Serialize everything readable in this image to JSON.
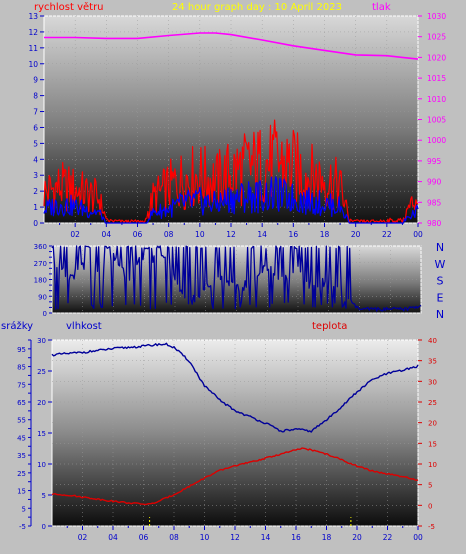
{
  "colors": {
    "background": "#c0c0c0",
    "tick_blue": "#0000cc",
    "wind_avg": "#0000ff",
    "wind_gust": "#ff0000",
    "pressure": "#ff00ff",
    "direction": "#000099",
    "humidity": "#000099",
    "temperature": "#dd0000",
    "rain": "#ffff00",
    "title": "#ffff00"
  },
  "chart_data": [
    {
      "type": "line",
      "title": "24 hour graph day : 10 April 2023",
      "ylabel_left": "rychlost větru",
      "ylabel_right": "tlak",
      "ylim_left": [
        0,
        13
      ],
      "ylim_right": [
        980,
        1030
      ],
      "yticks_left": [
        0,
        1,
        2,
        3,
        4,
        5,
        6,
        7,
        8,
        9,
        10,
        11,
        12,
        13
      ],
      "yticks_right": [
        980,
        985,
        990,
        995,
        1000,
        1005,
        1010,
        1015,
        1020,
        1025,
        1030
      ],
      "xlim": [
        0,
        24
      ],
      "xticks": [
        "02",
        "04",
        "06",
        "08",
        "10",
        "12",
        "14",
        "16",
        "18",
        "20",
        "22",
        "00"
      ],
      "series": [
        {
          "name": "tlak",
          "axis": "right",
          "x": [
            0,
            2,
            4,
            6,
            8,
            10,
            11,
            12,
            14,
            16,
            18,
            20,
            22,
            23,
            24
          ],
          "values": [
            1024.8,
            1024.8,
            1024.6,
            1024.6,
            1025.3,
            1025.9,
            1025.9,
            1025.5,
            1024.2,
            1022.8,
            1021.7,
            1020.6,
            1020.4,
            1020.0,
            1019.6
          ]
        },
        {
          "axis": "left",
          "x": [
            0,
            1,
            2,
            3,
            3.5,
            4,
            5,
            6,
            6.5,
            7,
            8,
            9,
            10,
            11,
            12,
            13,
            14,
            15,
            16,
            17,
            18,
            19,
            19.6,
            20,
            21,
            22,
            23,
            23.5,
            24
          ],
          "values": [
            2.2,
            2.6,
            2.4,
            2.0,
            1.8,
            0.3,
            0.2,
            0.2,
            0.2,
            1.8,
            2.6,
            3.2,
            3.4,
            3.0,
            3.6,
            4.0,
            4.2,
            4.4,
            4.0,
            3.4,
            3.2,
            2.6,
            0.3,
            0.2,
            0.2,
            0.3,
            0.3,
            1.2,
            2.0
          ]
        },
        {
          "axis": "left",
          "x": [
            0,
            1,
            2,
            3,
            3.5,
            4,
            5,
            6,
            6.5,
            7,
            8,
            9,
            10,
            11,
            12,
            13,
            14,
            15,
            16,
            17,
            18,
            19,
            19.6,
            20,
            21,
            22,
            23,
            23.5,
            24
          ],
          "values": [
            1.0,
            1.4,
            1.2,
            0.9,
            0.8,
            0.1,
            0.0,
            0.0,
            0.0,
            0.8,
            1.0,
            1.5,
            1.6,
            1.4,
            1.8,
            2.0,
            2.0,
            2.1,
            1.8,
            1.6,
            1.4,
            1.2,
            0.1,
            0.0,
            0.0,
            0.0,
            0.1,
            0.5,
            0.9
          ]
        }
      ]
    },
    {
      "type": "line",
      "right_labels": [
        "N",
        "W",
        "S",
        "E",
        "N"
      ],
      "ylim": [
        0,
        360
      ],
      "yticks": [
        0,
        30,
        60,
        90,
        120,
        150,
        180,
        210,
        240,
        270,
        300,
        330,
        360
      ],
      "xlim": [
        0,
        24
      ],
      "series": [
        {
          "x": [
            0,
            1,
            2,
            3,
            4,
            5,
            5.5,
            6,
            6.5,
            7,
            8,
            9,
            10,
            11,
            12,
            13,
            14,
            15,
            16,
            17,
            18,
            19,
            19.5,
            20,
            21,
            22,
            23,
            24
          ],
          "values": [
            300,
            180,
            250,
            200,
            300,
            190,
            260,
            300,
            280,
            350,
            170,
            60,
            140,
            200,
            120,
            180,
            250,
            170,
            230,
            120,
            180,
            150,
            40,
            10,
            10,
            10,
            10,
            30
          ]
        }
      ]
    },
    {
      "type": "line",
      "ylabel_left_outer": "srážky",
      "ylabel_left": "vlhkost",
      "ylabel_right": "teplota",
      "ylim_rain": [
        -5,
        100
      ],
      "yticks_rain": [
        -5,
        0,
        5,
        10,
        15,
        20,
        25,
        30,
        35,
        40,
        45,
        50,
        55,
        60,
        65,
        70,
        75,
        80,
        85,
        90,
        95,
        100
      ],
      "ylim_humidity": [
        0,
        30
      ],
      "yticks_humidity": [
        0,
        5,
        10,
        15,
        20,
        25,
        30
      ],
      "ylim_temperature": [
        -5,
        40
      ],
      "yticks_temperature": [
        -5,
        0,
        5,
        10,
        15,
        20,
        25,
        30,
        35,
        40
      ],
      "xlim": [
        0,
        24
      ],
      "xticks": [
        "02",
        "04",
        "06",
        "08",
        "10",
        "12",
        "14",
        "16",
        "18",
        "20",
        "22",
        "00"
      ],
      "series": [
        {
          "name": "vlhkost",
          "axis": "left",
          "x": [
            0,
            1,
            2,
            3,
            4,
            5,
            6,
            7,
            7.5,
            8,
            9,
            10,
            11,
            12,
            13,
            14,
            15,
            16,
            17,
            18,
            19,
            20,
            21,
            22,
            23,
            24
          ],
          "values": [
            27.6,
            27.8,
            28.0,
            28.3,
            28.6,
            28.8,
            29.0,
            29.3,
            29.3,
            28.8,
            26.6,
            22.6,
            20.3,
            18.6,
            17.6,
            16.6,
            15.3,
            15.6,
            15.3,
            17.1,
            19.3,
            21.6,
            23.6,
            24.6,
            25.1,
            25.8
          ]
        },
        {
          "name": "teplota",
          "axis": "right",
          "x": [
            0,
            1,
            2,
            3,
            4,
            5,
            6,
            6.5,
            7,
            8,
            9,
            10,
            11,
            12,
            13,
            14,
            15,
            16,
            16.5,
            17,
            18,
            19,
            20,
            21,
            22,
            23,
            24
          ],
          "values": [
            2.7,
            2.5,
            2.0,
            1.5,
            1.0,
            0.6,
            0.3,
            0.3,
            1.0,
            2.6,
            4.6,
            6.6,
            8.4,
            9.6,
            10.4,
            11.4,
            12.4,
            13.4,
            13.8,
            13.4,
            12.4,
            11.0,
            9.5,
            8.3,
            7.6,
            6.9,
            6.0
          ]
        },
        {
          "name": "srážky",
          "axis": "rain",
          "markers_x": [
            6.4,
            19.6
          ],
          "values": [
            0,
            0
          ]
        }
      ]
    }
  ]
}
